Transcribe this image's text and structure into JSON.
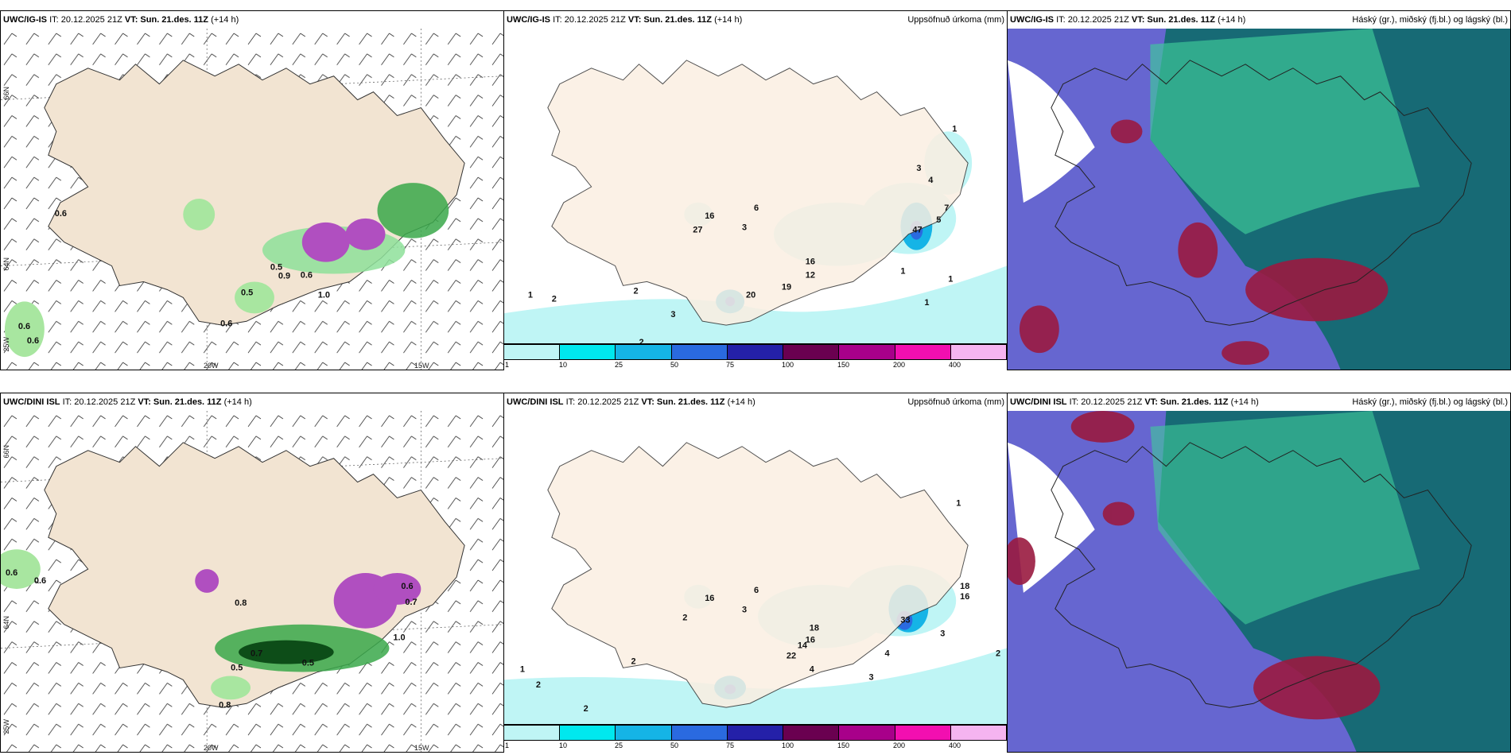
{
  "top": {
    "left": {
      "model": "UWC/IG-IS",
      "it": "IT: 20.12.2025 21Z",
      "vt_label": "VT:",
      "vt": "Sun. 21.des. 11Z",
      "lead": "(+14 h)"
    },
    "center": {
      "model": "UWC/IG-IS",
      "it": "IT: 20.12.2025 21Z",
      "vt_label": "VT:",
      "vt": "Sun. 21.des. 11Z",
      "lead": "(+14 h)",
      "right_title": "Uppsöfnuð úrkoma (mm)"
    },
    "right": {
      "model": "UWC/IG-IS",
      "it": "IT: 20.12.2025 21Z",
      "vt_label": "VT:",
      "vt": "Sun. 21.des. 11Z",
      "lead": "(+14 h)",
      "right_title": "Háský (gr.), miðský (fj.bl.) og lágský (bl.)"
    }
  },
  "bottom": {
    "left": {
      "model": "UWC/DINI ISL",
      "it": "IT: 20.12.2025 21Z",
      "vt_label": "VT:",
      "vt": "Sun. 21.des. 11Z",
      "lead": "(+14 h)"
    },
    "center": {
      "model": "UWC/DINI ISL",
      "it": "IT: 20.12.2025 21Z",
      "vt_label": "VT:",
      "vt": "Sun. 21.des. 11Z",
      "lead": "(+14 h)",
      "right_title": "Uppsöfnuð úrkoma (mm)"
    },
    "right": {
      "model": "UWC/DINI ISL",
      "it": "IT: 20.12.2025 21Z",
      "vt_label": "VT:",
      "vt": "Sun. 21.des. 11Z",
      "lead": "(+14 h)",
      "right_title": "Háský (gr.), miðský (fj.bl.) og lágský (bl.)"
    }
  },
  "axis_labels": {
    "lat66": "66N",
    "lat64": "64N",
    "lon20": "20W",
    "lon15": "15W",
    "lon25": "25W"
  },
  "legend": {
    "ticks": [
      "1",
      "10",
      "25",
      "50",
      "75",
      "100",
      "150",
      "200",
      "400"
    ],
    "colors": [
      "#bff5f5",
      "#00e8ee",
      "#15b4e6",
      "#2a6ae0",
      "#2420a8",
      "#6a0050",
      "#a8008a",
      "#f20fb0",
      "#f5b4f0"
    ]
  },
  "wind_values_top": [
    "0.6",
    "0.6",
    "0.6",
    "0.5",
    "0.6",
    "0.9",
    "0.5",
    "0.6",
    "1.0"
  ],
  "wind_values_bottom": [
    "0.6",
    "0.6",
    "0.8",
    "0.5",
    "0.7",
    "0.5",
    "1.0",
    "0.6",
    "0.7",
    "0.8"
  ],
  "precip_values_top": [
    "16",
    "6",
    "3",
    "27",
    "16",
    "12",
    "19",
    "20",
    "47",
    "2",
    "3",
    "1",
    "2",
    "2",
    "1",
    "1",
    "1",
    "3",
    "4",
    "7",
    "5",
    "1"
  ],
  "precip_values_bottom": [
    "16",
    "6",
    "3",
    "2",
    "18",
    "16",
    "22",
    "14",
    "33",
    "2",
    "4",
    "4",
    "3",
    "3",
    "18",
    "16",
    "1",
    "1",
    "2",
    "2",
    "2"
  ],
  "colors": {
    "land": "#f2e4d2",
    "ocean_cloud": "#6666d0",
    "cloud_high": "#0e6a6a",
    "cloud_mid": "#3fcc9a",
    "cloud_low": "#9a1a40"
  }
}
